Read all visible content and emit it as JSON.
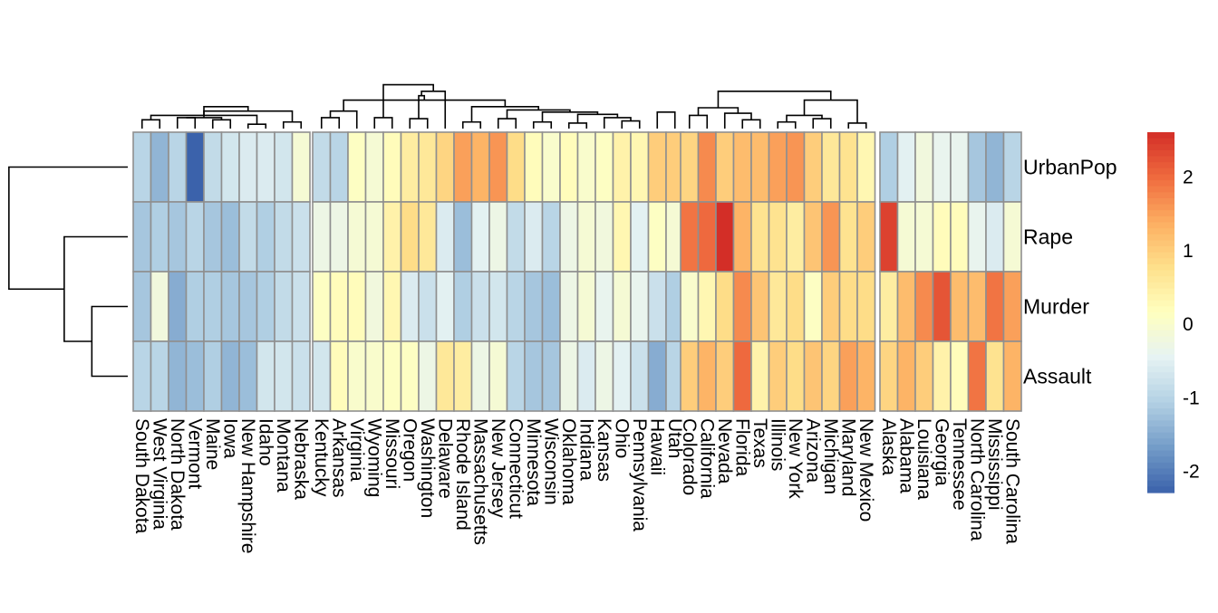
{
  "chart_data": {
    "type": "heatmap",
    "title": "",
    "xlabel": "",
    "ylabel": "",
    "rows": [
      "UrbanPop",
      "Rape",
      "Murder",
      "Assault"
    ],
    "column_groups": [
      [
        "South Dakota",
        "West Virginia",
        "North Dakota",
        "Vermont",
        "Maine",
        "Iowa",
        "New Hampshire",
        "Idaho",
        "Montana",
        "Nebraska"
      ],
      [
        "Kentucky",
        "Arkansas",
        "Virginia",
        "Wyoming",
        "Missouri",
        "Oregon",
        "Washington",
        "Delaware",
        "Rhode Island",
        "Massachusetts",
        "New Jersey",
        "Connecticut",
        "Minnesota",
        "Wisconsin",
        "Oklahoma",
        "Indiana",
        "Kansas",
        "Ohio",
        "Pennsylvania",
        "Hawaii",
        "Utah"
      ],
      [
        "Colorado",
        "California",
        "Nevada",
        "Florida",
        "Texas",
        "Illinois",
        "New York",
        "Arizona",
        "Michigan",
        "Maryland",
        "New Mexico"
      ],
      [
        "Alaska",
        "Alabama",
        "Louisiana",
        "Georgia",
        "Tennessee",
        "North Carolina",
        "Mississippi",
        "South Carolina"
      ]
    ],
    "values": {
      "UrbanPop": [
        [
          -1.0,
          -1.4,
          -1.0,
          -2.3,
          -0.9,
          -0.7,
          -0.6,
          -0.6,
          -0.7,
          -0.1
        ],
        [
          -0.9,
          -1.0,
          0.1,
          -0.1,
          0.2,
          0.5,
          0.6,
          0.9,
          1.5,
          1.3,
          1.6,
          0.8,
          0.2,
          0.0,
          0.2,
          0.0,
          0.1,
          0.4,
          0.3,
          1.0,
          1.0
        ],
        [
          0.9,
          1.7,
          1.0,
          1.2,
          1.2,
          1.5,
          1.6,
          1.0,
          0.6,
          0.7,
          0.3
        ],
        [
          -1.1,
          -0.5,
          -0.2,
          -0.4,
          -0.4,
          -1.2,
          -1.4,
          -1.0
        ]
      ],
      "Rape": [
        [
          -1.2,
          -1.1,
          -1.2,
          -1.0,
          -1.2,
          -1.3,
          -0.9,
          -1.1,
          -0.9,
          -0.8
        ],
        [
          -0.3,
          -0.3,
          -0.1,
          -0.1,
          0.4,
          0.8,
          0.6,
          -0.6,
          -1.3,
          -0.5,
          -0.3,
          -0.9,
          -0.6,
          -1.0,
          -0.3,
          -0.1,
          -0.2,
          0.3,
          -0.5,
          0.1,
          -0.1
        ],
        [
          1.9,
          2.0,
          2.6,
          1.3,
          0.7,
          0.7,
          0.5,
          1.1,
          1.6,
          0.7,
          1.0
        ],
        [
          2.4,
          -0.1,
          -0.1,
          0.2,
          0.2,
          -0.4,
          -0.6,
          -0.1
        ]
      ],
      "Murder": [
        [
          -1.2,
          -0.2,
          -1.5,
          -1.1,
          -1.1,
          -1.2,
          -1.2,
          -1.1,
          -0.9,
          -0.8
        ],
        [
          0.1,
          0.2,
          0.2,
          -0.2,
          0.3,
          -0.6,
          -0.8,
          -0.5,
          -1.1,
          -0.8,
          -0.7,
          -1.0,
          -1.2,
          -1.3,
          -0.3,
          -0.1,
          -0.4,
          -0.1,
          -0.4,
          -0.8,
          -1.1
        ],
        [
          0.0,
          0.3,
          0.8,
          1.7,
          1.1,
          0.6,
          0.8,
          0.1,
          1.0,
          0.8,
          0.8
        ],
        [
          0.5,
          1.2,
          1.7,
          2.2,
          1.2,
          1.2,
          1.9,
          1.5
        ]
      ],
      "Assault": [
        [
          -1.0,
          -1.0,
          -1.4,
          -1.3,
          -1.1,
          -1.4,
          -1.3,
          -0.7,
          -0.7,
          -0.8
        ],
        [
          -0.7,
          0.2,
          0.0,
          0.0,
          0.1,
          0.1,
          -0.3,
          0.6,
          0.5,
          -0.3,
          -0.1,
          -1.0,
          -1.2,
          -1.2,
          -0.3,
          -0.6,
          -0.3,
          -0.5,
          -0.8,
          -1.5,
          -1.0
        ],
        [
          1.0,
          1.3,
          1.0,
          2.0,
          0.4,
          1.0,
          0.8,
          1.1,
          0.9,
          1.5,
          1.3
        ],
        [
          0.9,
          1.3,
          1.0,
          0.4,
          0.2,
          1.9,
          0.7,
          1.3
        ]
      ]
    },
    "row_dendrogram": [
      {
        "a": 2,
        "b": 3,
        "h": 1.3
      },
      {
        "a": 1,
        "b": 4,
        "h": 2.3
      },
      {
        "a": 0,
        "b": 5,
        "h": 4.3
      }
    ],
    "column_dendrogram": {
      "top": 1,
      "height": 10.0,
      "groups": [
        {
          "left": 12,
          "right": 13,
          "h": 4.4,
          "nodes": [
            {
              "a": 0,
              "b": 1,
              "h": 0.8
            },
            {
              "a": 2,
              "b": 3,
              "h": 1.0
            },
            {
              "a": 4,
              "b": 5,
              "h": 0.8
            },
            {
              "a": 6,
              "b": 7,
              "h": 0.4
            },
            {
              "a": 8,
              "b": 9,
              "h": 0.6
            },
            {
              "a": 11,
              "b": 12,
              "h": 1.0
            },
            {
              "a": 10,
              "b": 13,
              "h": 1.2
            },
            {
              "a": 14,
              "b": 15,
              "h": 1.6
            },
            {
              "a": 16,
              "b": 17,
              "h": 2.0
            },
            {
              "a": 18,
              "b": 19,
              "h": 2.6
            }
          ]
        },
        {
          "left": 30,
          "right": 32,
          "h": 4.5,
          "nodes": [
            {
              "a": 0,
              "b": 1,
              "h": 1.0
            },
            {
              "a": 3,
              "b": 4,
              "h": 1.0
            },
            {
              "a": 5,
              "b": 6,
              "h": 0.9
            },
            {
              "a": 2,
              "b": 21,
              "h": 1.6
            },
            {
              "a": 8,
              "b": 9,
              "h": 0.6
            },
            {
              "a": 10,
              "b": 11,
              "h": 0.9
            },
            {
              "a": 12,
              "b": 13,
              "h": 0.6
            },
            {
              "a": 14,
              "b": 15,
              "h": 0.5
            },
            {
              "a": 17,
              "b": 18,
              "h": 0.7
            },
            {
              "a": 16,
              "b": 29,
              "h": 1.0
            },
            {
              "a": 28,
              "b": 30,
              "h": 1.3
            },
            {
              "a": 27,
              "b": 31,
              "h": 1.5
            },
            {
              "a": 26,
              "b": 32,
              "h": 1.7
            },
            {
              "a": 25,
              "b": 33,
              "h": 2.0
            },
            {
              "a": 24,
              "b": 34,
              "h": 2.6
            },
            {
              "a": 23,
              "b": 35,
              "h": 3.0
            },
            {
              "a": 7,
              "b": 36,
              "h": 3.4
            },
            {
              "a": 19,
              "b": 20,
              "h": 1.5
            },
            {
              "a": 22,
              "b": 37,
              "h": 4.0
            }
          ]
        },
        {
          "left": 51,
          "right": 52,
          "h": 8.4,
          "nodes": [
            {
              "a": 0,
              "b": 1,
              "h": 1.2
            },
            {
              "a": 3,
              "b": 4,
              "h": 0.8
            },
            {
              "a": 5,
              "b": 6,
              "h": 0.6
            },
            {
              "a": 7,
              "b": 8,
              "h": 0.9
            },
            {
              "a": 9,
              "b": 10,
              "h": 0.5
            },
            {
              "a": 2,
              "b": 12,
              "h": 1.4
            },
            {
              "a": 13,
              "b": 14,
              "h": 1.2
            },
            {
              "a": 11,
              "b": 16,
              "h": 1.9
            },
            {
              "a": 15,
              "b": 17,
              "h": 2.6
            },
            {
              "a": 18,
              "b": 19,
              "h": 3.4
            }
          ]
        },
        {
          "left": 20,
          "right": 52,
          "h": 11.2,
          "nodes": []
        }
      ]
    },
    "legend": {
      "ticks": [
        2,
        1,
        0,
        -1,
        -2
      ],
      "range": [
        -2.3,
        2.6
      ]
    },
    "palette": [
      "#3B62AB",
      "#739CC8",
      "#B3D1E4",
      "#E6F3F3",
      "#FFFFBF",
      "#FEE08B",
      "#FDAE61",
      "#EF6A3E",
      "#D32E27"
    ],
    "cell_border": "#8F8F8F"
  }
}
